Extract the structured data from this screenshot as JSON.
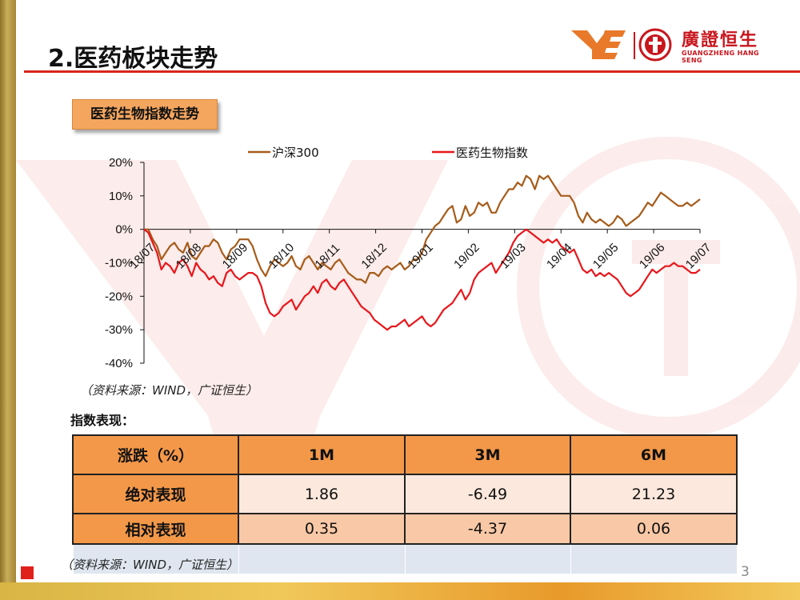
{
  "slide": {
    "title": "2.医药板块走势",
    "section_label": "医药生物指数走势",
    "chart_source": "（资料来源：WIND，广证恒生）",
    "perf_title": "指数表现：",
    "table_source": "（资料来源：WIND，广证恒生）",
    "page_number": "3"
  },
  "logo": {
    "mark_text": "YE",
    "brand_cn": "廣證恒生",
    "brand_en": "GUANGZHENG HANG SENG"
  },
  "colors": {
    "title_rule": "#d9251d",
    "series_hs300": "#a65c1b",
    "series_pharma": "#e8161b",
    "table_header": "#f39849"
  },
  "chart_data": {
    "type": "line",
    "x_tick_labels": [
      "18/07",
      "18/08",
      "18/09",
      "18/10",
      "18/11",
      "18/12",
      "19/01",
      "19/02",
      "19/03",
      "19/04",
      "19/05",
      "19/06",
      "19/07"
    ],
    "y_tick_labels": [
      "20%",
      "10%",
      "0%",
      "-10%",
      "-20%",
      "-30%",
      "-40%"
    ],
    "ylim": [
      -40,
      20
    ],
    "y_unit": "%",
    "legend_position": "top",
    "series": [
      {
        "name": "沪深300",
        "color": "#a65c1b",
        "values": [
          0,
          0,
          -3,
          -5,
          -9,
          -7,
          -5,
          -4,
          -6,
          -7,
          -4,
          -8,
          -9,
          -7,
          -5,
          -5,
          -3,
          -4,
          -7,
          -9,
          -6,
          -5,
          -3,
          -3,
          -3,
          -5,
          -9,
          -12,
          -14,
          -11,
          -9,
          -10,
          -11,
          -10,
          -8,
          -11,
          -12,
          -9,
          -8,
          -10,
          -12,
          -10,
          -11,
          -12,
          -10,
          -9,
          -11,
          -13,
          -14,
          -15,
          -15,
          -16,
          -13,
          -13,
          -14,
          -12,
          -11,
          -12,
          -11,
          -10,
          -12,
          -11,
          -9,
          -9,
          -7,
          -3,
          -1,
          1,
          2,
          4,
          6,
          7,
          2,
          3,
          7,
          4,
          5,
          8,
          7,
          8,
          5,
          5,
          8,
          10,
          12,
          12,
          14,
          13,
          16,
          15,
          12,
          16,
          15,
          16,
          14,
          12,
          10,
          10,
          10,
          8,
          4,
          2,
          5,
          3,
          2,
          3,
          2,
          1,
          2,
          4,
          3,
          1,
          2,
          3,
          4,
          6,
          8,
          7,
          9,
          11,
          10,
          9,
          8,
          7,
          7,
          8,
          7,
          8,
          9
        ]
      },
      {
        "name": "医药生物指数",
        "color": "#e8161b",
        "values": [
          0,
          -1,
          -4,
          -7,
          -12,
          -10,
          -11,
          -13,
          -10,
          -9,
          -11,
          -14,
          -10,
          -12,
          -13,
          -15,
          -14,
          -16,
          -17,
          -13,
          -12,
          -14,
          -15,
          -14,
          -13,
          -13,
          -14,
          -17,
          -22,
          -25,
          -26,
          -25,
          -23,
          -22,
          -21,
          -24,
          -22,
          -20,
          -19,
          -17,
          -19,
          -16,
          -15,
          -17,
          -18,
          -16,
          -15,
          -17,
          -19,
          -21,
          -23,
          -24,
          -25,
          -27,
          -28,
          -29,
          -30,
          -29,
          -29,
          -28,
          -27,
          -29,
          -28,
          -27,
          -26,
          -28,
          -29,
          -28,
          -26,
          -24,
          -23,
          -22,
          -20,
          -18,
          -21,
          -19,
          -15,
          -13,
          -12,
          -11,
          -10,
          -13,
          -11,
          -9,
          -7,
          -4,
          -2,
          -1,
          0,
          -1,
          -2,
          -3,
          -4,
          -3,
          -4,
          -3,
          -5,
          -6,
          -7,
          -6,
          -9,
          -12,
          -13,
          -12,
          -14,
          -13,
          -14,
          -13,
          -14,
          -15,
          -17,
          -19,
          -20,
          -19,
          -18,
          -16,
          -14,
          -12,
          -13,
          -12,
          -11,
          -11,
          -10,
          -11,
          -11,
          -12,
          -13,
          -13,
          -12
        ]
      }
    ]
  },
  "table": {
    "headers": [
      "涨跌（%）",
      "1M",
      "3M",
      "6M"
    ],
    "rows": [
      {
        "label": "绝对表现",
        "values": [
          "1.86",
          "-6.49",
          "21.23"
        ]
      },
      {
        "label": "相对表现",
        "values": [
          "0.35",
          "-4.37",
          "0.06"
        ]
      }
    ]
  }
}
